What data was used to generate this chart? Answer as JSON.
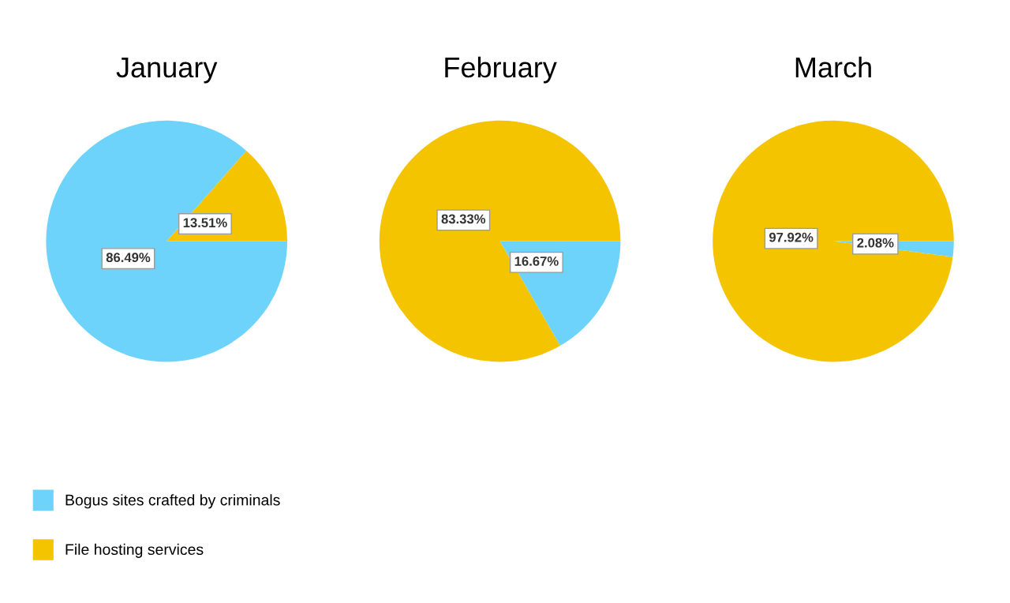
{
  "chart_data": [
    {
      "type": "pie",
      "title": "January",
      "categories": [
        "File hosting services",
        "Bogus sites crafted by criminals"
      ],
      "values": [
        13.51,
        86.49
      ],
      "colors": [
        "#f5c400",
        "#6dd3fb"
      ],
      "value_labels": [
        "13.51%",
        "86.49%"
      ],
      "legend": "bottom left"
    },
    {
      "type": "pie",
      "title": "February",
      "categories": [
        null,
        null
      ],
      "values": [
        83.33,
        16.67
      ],
      "colors": [
        "#f5c400",
        "#6dd3fb"
      ],
      "value_labels": [
        "83.33%",
        "16.67%"
      ]
    },
    {
      "type": "pie",
      "title": "March",
      "categories": [
        null,
        null
      ],
      "values": [
        97.92,
        2.08
      ],
      "colors": [
        "#f5c400",
        "#6dd3fb"
      ],
      "value_labels": [
        "97.92%",
        "2.08%"
      ]
    }
  ]
}
